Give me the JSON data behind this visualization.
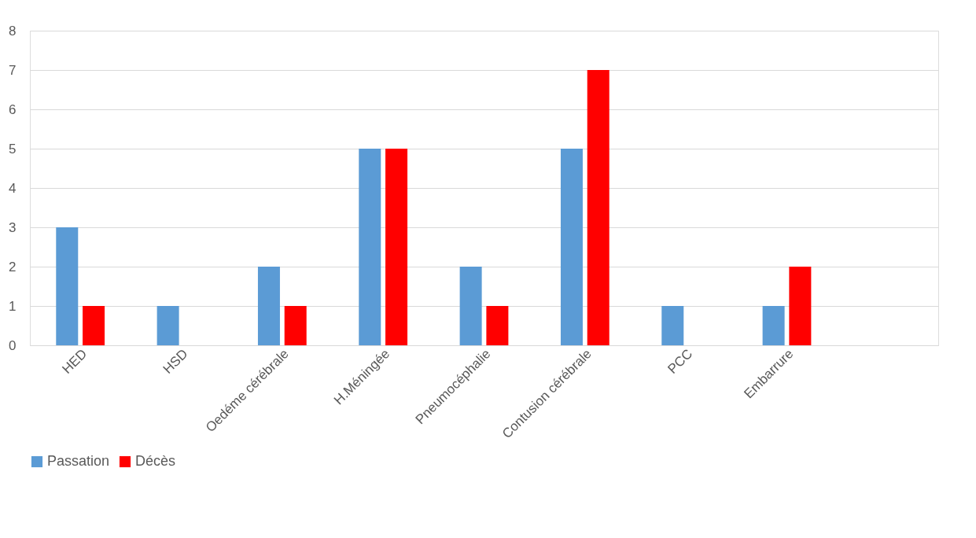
{
  "chart_data": {
    "type": "bar",
    "categories": [
      "HED",
      "HSD",
      "Oedéme cérébrale",
      "H.Méningée",
      "Pneumocéphalie",
      "Contusion cérébrale",
      "PCC",
      "Embarrure",
      null
    ],
    "series": [
      {
        "name": "Passation",
        "color": "#5b9bd5",
        "values": [
          3,
          1,
          2,
          5,
          2,
          5,
          1,
          1,
          null
        ]
      },
      {
        "name": "Décès",
        "color": "#ff0000",
        "values": [
          1,
          0,
          1,
          5,
          1,
          7,
          0,
          2,
          null
        ]
      }
    ],
    "ylim": [
      0,
      8
    ],
    "yticks": [
      0,
      1,
      2,
      3,
      4,
      5,
      6,
      7,
      8
    ],
    "grid": "y",
    "legend": "bottom"
  }
}
